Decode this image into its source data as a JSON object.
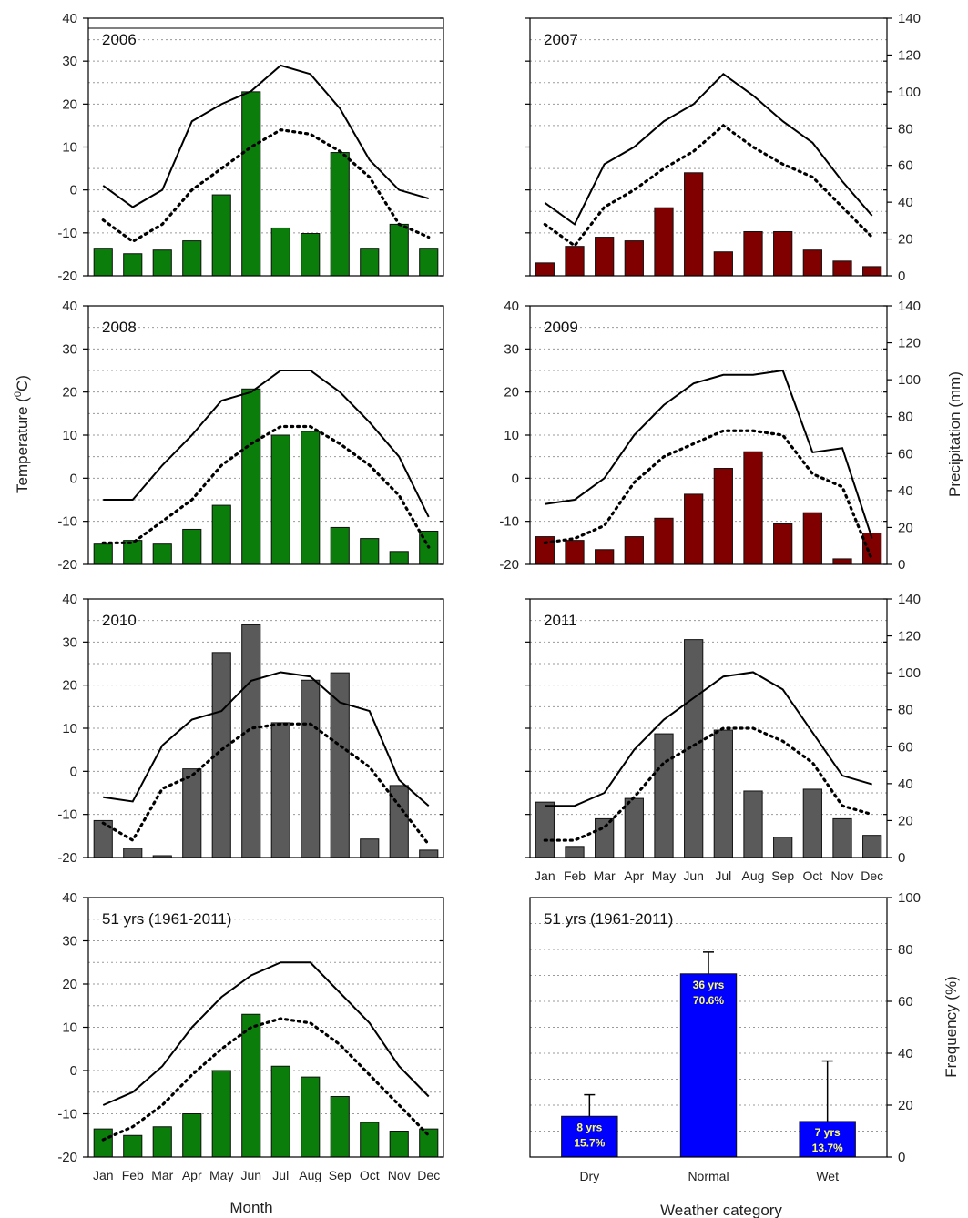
{
  "colors": {
    "green": "#0a7d0a",
    "red": "#800000",
    "gray": "#5a5a5a",
    "blue": "#0000ff",
    "grid": "#9a9a9a",
    "bar_label": "#ffff66"
  },
  "months": [
    "Jan",
    "Feb",
    "Mar",
    "Apr",
    "May",
    "Jun",
    "Jul",
    "Aug",
    "Sep",
    "Oct",
    "Nov",
    "Dec"
  ],
  "labels": {
    "temperature_axis": "Temperature (",
    "temperature_sup": "0",
    "temperature_unit": "C)",
    "precipitation_axis": "Precipitation (mm)",
    "frequency_axis": "Frequency (%)",
    "month_axis": "Month",
    "category_axis": "Weather category"
  },
  "chart_data": [
    {
      "type": "bar",
      "title": "2006",
      "color": "green",
      "ylim": [
        -20,
        40
      ],
      "y2lim": [
        0,
        140
      ],
      "categories": [
        "Jan",
        "Feb",
        "Mar",
        "Apr",
        "May",
        "Jun",
        "Jul",
        "Aug",
        "Sep",
        "Oct",
        "Nov",
        "Dec"
      ],
      "precipitation": [
        15,
        12,
        14,
        19,
        44,
        100,
        26,
        23,
        67,
        15,
        28,
        15
      ],
      "tmax": [
        1,
        -4,
        0,
        16,
        20,
        23,
        29,
        27,
        19,
        7,
        0,
        -2
      ],
      "tmin": [
        -7,
        -12,
        -8,
        0,
        5,
        10,
        14,
        13,
        9,
        3,
        -8,
        -11
      ]
    },
    {
      "type": "bar",
      "title": "2007",
      "color": "red",
      "ylim": [
        -20,
        40
      ],
      "y2lim": [
        0,
        140
      ],
      "categories": [
        "Jan",
        "Feb",
        "Mar",
        "Apr",
        "May",
        "Jun",
        "Jul",
        "Aug",
        "Sep",
        "Oct",
        "Nov",
        "Dec"
      ],
      "precipitation": [
        7,
        16,
        21,
        19,
        37,
        56,
        13,
        24,
        24,
        14,
        8,
        5
      ],
      "tmax": [
        -3,
        -8,
        6,
        10,
        16,
        20,
        27,
        22,
        16,
        11,
        2,
        -6
      ],
      "tmin": [
        -8,
        -13,
        -4,
        0,
        5,
        9,
        15,
        10,
        6,
        3,
        -4,
        -11
      ]
    },
    {
      "type": "bar",
      "title": "2008",
      "color": "green",
      "ylim": [
        -20,
        40
      ],
      "y2lim": [
        0,
        140
      ],
      "categories": [
        "Jan",
        "Feb",
        "Mar",
        "Apr",
        "May",
        "Jun",
        "Jul",
        "Aug",
        "Sep",
        "Oct",
        "Nov",
        "Dec"
      ],
      "precipitation": [
        11,
        13,
        11,
        19,
        32,
        95,
        70,
        72,
        20,
        14,
        7,
        18
      ],
      "tmax": [
        -5,
        -5,
        3,
        10,
        18,
        20,
        25,
        25,
        20,
        13,
        5,
        -9
      ],
      "tmin": [
        -15,
        -15,
        -10,
        -5,
        3,
        8,
        12,
        12,
        8,
        3,
        -4,
        -16
      ]
    },
    {
      "type": "bar",
      "title": "2009",
      "color": "red",
      "ylim": [
        -20,
        40
      ],
      "y2lim": [
        0,
        140
      ],
      "categories": [
        "Jan",
        "Feb",
        "Mar",
        "Apr",
        "May",
        "Jun",
        "Jul",
        "Aug",
        "Sep",
        "Oct",
        "Nov",
        "Dec"
      ],
      "precipitation": [
        15,
        13,
        8,
        15,
        25,
        38,
        52,
        61,
        22,
        28,
        3,
        17
      ],
      "tmax": [
        -6,
        -5,
        0,
        10,
        17,
        22,
        24,
        24,
        25,
        6,
        7,
        -14
      ],
      "tmin": [
        -15,
        -14,
        -11,
        -1,
        5,
        8,
        11,
        11,
        10,
        1,
        -2,
        -19
      ]
    },
    {
      "type": "bar",
      "title": "2010",
      "color": "gray",
      "ylim": [
        -20,
        40
      ],
      "y2lim": [
        0,
        140
      ],
      "categories": [
        "Jan",
        "Feb",
        "Mar",
        "Apr",
        "May",
        "Jun",
        "Jul",
        "Aug",
        "Sep",
        "Oct",
        "Nov",
        "Dec"
      ],
      "precipitation": [
        20,
        5,
        1,
        48,
        111,
        126,
        73,
        96,
        100,
        10,
        39,
        4
      ],
      "tmax": [
        -6,
        -7,
        6,
        12,
        14,
        21,
        23,
        22,
        16,
        14,
        -2,
        -8
      ],
      "tmin": [
        -12,
        -16,
        -4,
        -1,
        5,
        10,
        11,
        11,
        6,
        1,
        -8,
        -17
      ]
    },
    {
      "type": "bar",
      "title": "2011",
      "color": "gray",
      "ylim": [
        -20,
        40
      ],
      "y2lim": [
        0,
        140
      ],
      "categories": [
        "Jan",
        "Feb",
        "Mar",
        "Apr",
        "May",
        "Jun",
        "Jul",
        "Aug",
        "Sep",
        "Oct",
        "Nov",
        "Dec"
      ],
      "precipitation": [
        30,
        6,
        21,
        32,
        67,
        118,
        69,
        36,
        11,
        37,
        21,
        12
      ],
      "tmax": [
        -8,
        -8,
        -5,
        5,
        12,
        17,
        22,
        23,
        19,
        9,
        -1,
        -3
      ],
      "tmin": [
        -16,
        -16,
        -13,
        -6,
        2,
        6,
        10,
        10,
        7,
        2,
        -8,
        -10
      ]
    },
    {
      "type": "bar",
      "title": "51 yrs (1961-2011)",
      "color": "green",
      "ylim": [
        -20,
        40
      ],
      "categories": [
        "Jan",
        "Feb",
        "Mar",
        "Apr",
        "May",
        "Jun",
        "Jul",
        "Aug",
        "Sep",
        "Oct",
        "Nov",
        "Dec"
      ],
      "temperature_bars": [
        -13.5,
        -15,
        -13,
        -10,
        0,
        13,
        1,
        -1.5,
        -6,
        -12,
        -14,
        -13.5
      ],
      "tmax": [
        -8,
        -5,
        1,
        10,
        17,
        22,
        25,
        25,
        18,
        11,
        1,
        -6
      ],
      "tmin": [
        -16,
        -13,
        -8,
        -1,
        5,
        10,
        12,
        11,
        6,
        -1,
        -8,
        -15
      ]
    },
    {
      "type": "bar",
      "title": "51 yrs (1961-2011)",
      "color": "blue",
      "ylim": [
        0,
        100
      ],
      "categories": [
        "Dry",
        "Normal",
        "Wet"
      ],
      "values": [
        15.7,
        70.6,
        13.7
      ],
      "error_upper": [
        24,
        79,
        37
      ],
      "bar_labels": [
        [
          "8 yrs",
          "15.7%"
        ],
        [
          "36 yrs",
          "70.6%"
        ],
        [
          "7 yrs",
          "13.7%"
        ]
      ]
    }
  ]
}
